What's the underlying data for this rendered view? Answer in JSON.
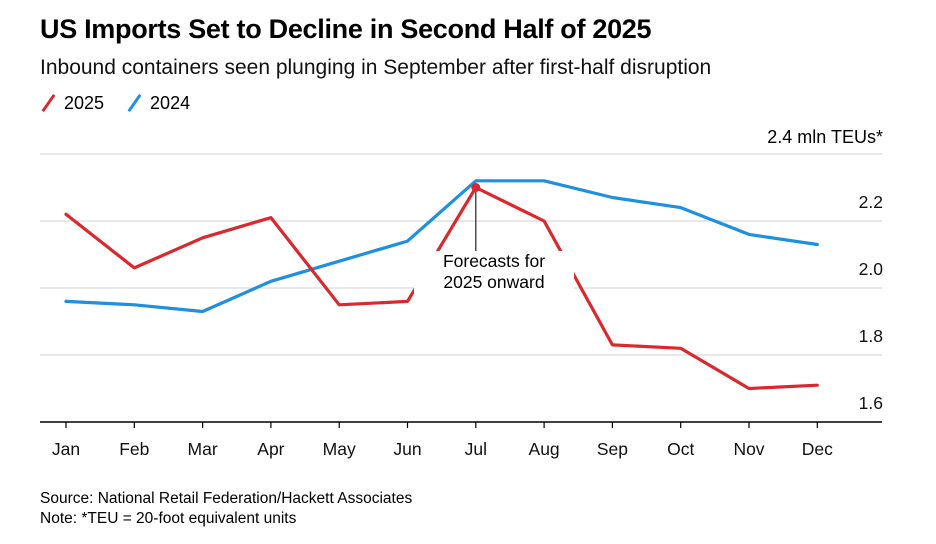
{
  "title": "US Imports Set to Decline in Second Half of 2025",
  "subtitle": "Inbound containers seen plunging in September after first-half disruption",
  "unit_label": "2.4 mln TEUs*",
  "annotation": {
    "line1": "Forecasts for",
    "line2": "2025 onward"
  },
  "footer": {
    "source": "Source: National Retail Federation/Hackett Associates",
    "note": "Note: *TEU = 20-foot equivalent units"
  },
  "colors": {
    "2025": "#d9282e",
    "2024": "#1f8fe0",
    "grid": "#d9d9d9",
    "axis": "#000000"
  },
  "chart_data": {
    "type": "line",
    "categories": [
      "Jan",
      "Feb",
      "Mar",
      "Apr",
      "May",
      "Jun",
      "Jul",
      "Aug",
      "Sep",
      "Oct",
      "Nov",
      "Dec"
    ],
    "series": [
      {
        "name": "2025",
        "color": "#d9282e",
        "values": [
          2.22,
          2.06,
          2.15,
          2.21,
          1.95,
          1.96,
          2.3,
          2.2,
          1.83,
          1.82,
          1.7,
          1.71
        ]
      },
      {
        "name": "2024",
        "color": "#1f8fe0",
        "values": [
          1.96,
          1.95,
          1.93,
          2.02,
          2.08,
          2.14,
          2.32,
          2.32,
          2.27,
          2.24,
          2.16,
          2.13
        ]
      }
    ],
    "yticks": [
      1.6,
      1.8,
      2.0,
      2.2,
      2.4
    ],
    "ytick_labels": [
      "1.6",
      "1.8",
      "2.0",
      "2.2",
      ""
    ],
    "ylim": [
      1.6,
      2.4
    ],
    "grid": true,
    "legend": "top-left",
    "annotated_point": {
      "series": "2025",
      "category": "Jul",
      "value": 2.3
    }
  }
}
